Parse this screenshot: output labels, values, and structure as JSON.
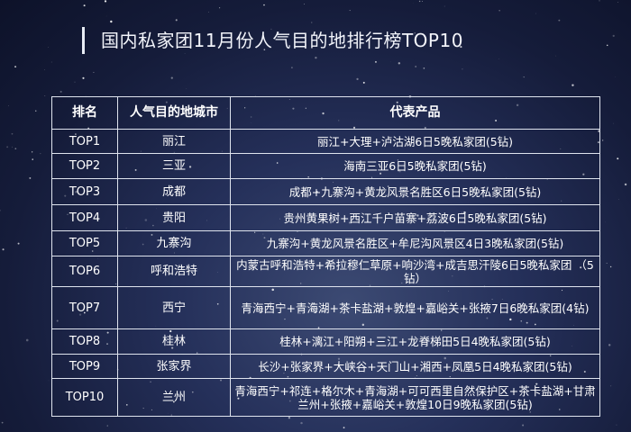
{
  "title": "国内私家团11月份人气目的地排行榜TOP10",
  "table": {
    "headers": [
      "排名",
      "人气目的地城市",
      "代表产品"
    ],
    "rows": [
      {
        "rank": "TOP1",
        "city": "丽江",
        "product": "丽江+大理+泸沽湖6日5晚私家团(5钻)"
      },
      {
        "rank": "TOP2",
        "city": "三亚",
        "product": "海南三亚6日5晚私家团(5钻)"
      },
      {
        "rank": "TOP3",
        "city": "成都",
        "product": "成都+九寨沟+黄龙风景名胜区6日5晚私家团(5钻)"
      },
      {
        "rank": "TOP4",
        "city": "贵阳",
        "product": "贵州黄果树+西江千户苗寨+荔波6日5晚私家团(5钻)"
      },
      {
        "rank": "TOP5",
        "city": "九寨沟",
        "product": "九寨沟+黄龙风景名胜区+牟尼沟风景区4日3晚私家团(5钻)"
      },
      {
        "rank": "TOP6",
        "city": "呼和浩特",
        "product": "内蒙古呼和浩特+希拉穆仁草原+响沙湾+成吉思汗陵6日5晚私家团 （5钻）"
      },
      {
        "rank": "TOP7",
        "city": "西宁",
        "product": "青海西宁+青海湖+茶卡盐湖+敦煌+嘉峪关+张掖7日6晚私家团(4钻)"
      },
      {
        "rank": "TOP8",
        "city": "桂林",
        "product": "桂林+漓江+阳朔+三江+龙脊梯田5日4晚私家团(5钻)"
      },
      {
        "rank": "TOP9",
        "city": "张家界",
        "product": "长沙+张家界+大峡谷+天门山+湘西+凤凰5日4晚私家团(5钻)"
      },
      {
        "rank": "TOP10",
        "city": "兰州",
        "product": "青海西宁+祁连+格尔木+青海湖+可可西里自然保护区+茶卡盐湖+甘肃兰州+张掖+嘉峪关+敦煌10日9晚私家团(5钻)"
      }
    ]
  }
}
